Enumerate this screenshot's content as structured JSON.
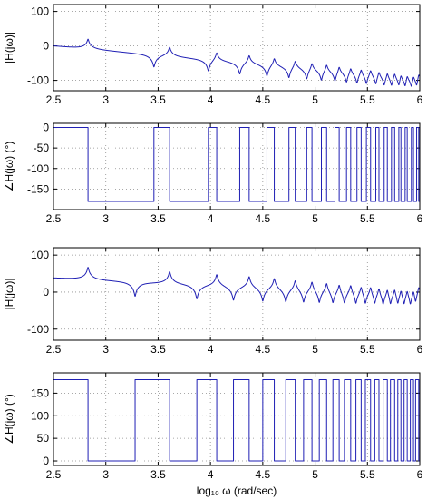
{
  "colors": {
    "trace": "#1f1fb4",
    "axis": "#000000",
    "grid": "#8c8c8c"
  },
  "chart_data": [
    {
      "type": "line",
      "xlabel": "",
      "ylabel": "|H(jω)|",
      "xlim": [
        2.5,
        6
      ],
      "ylim": [
        -130,
        120
      ],
      "xticks": [
        "2.5",
        "3",
        "3.5",
        "4",
        "4.5",
        "5",
        "5.5",
        "6"
      ],
      "yticks": [
        "100",
        "0",
        "-100"
      ],
      "grid": true,
      "series": [
        {
          "kind": "magnitude",
          "baseline_start": 0,
          "baseline_end": -95,
          "resonance_peak_height": 22,
          "antiresonance_depth": 28,
          "resonances": [
            2.83,
            3.61,
            4.06,
            4.37,
            4.61,
            4.81,
            4.97,
            5.11,
            5.23,
            5.34,
            5.44,
            5.53,
            5.61,
            5.69,
            5.76,
            5.82,
            5.88,
            5.94,
            5.99
          ],
          "antiresonances": [
            3.46,
            3.98,
            4.28,
            4.54,
            4.75,
            4.92,
            5.06,
            5.19,
            5.3,
            5.4,
            5.49,
            5.58,
            5.66,
            5.73,
            5.8,
            5.86,
            5.92,
            5.97
          ]
        }
      ]
    },
    {
      "type": "line",
      "xlabel": "",
      "ylabel": "∠H(jω) (°)",
      "xlim": [
        2.5,
        6
      ],
      "ylim": [
        -200,
        10
      ],
      "xticks": [
        "2.5",
        "3",
        "3.5",
        "4",
        "4.5",
        "5",
        "5.5",
        "6"
      ],
      "yticks": [
        "0",
        "-50",
        "-100",
        "-150"
      ],
      "grid": true,
      "series": [
        {
          "kind": "phase",
          "levels": [
            0,
            -180
          ],
          "transitions": [
            2.83,
            3.46,
            3.61,
            3.98,
            4.06,
            4.28,
            4.37,
            4.54,
            4.61,
            4.75,
            4.81,
            4.92,
            4.97,
            5.06,
            5.11,
            5.19,
            5.23,
            5.3,
            5.34,
            5.4,
            5.44,
            5.49,
            5.53,
            5.58,
            5.61,
            5.66,
            5.69,
            5.73,
            5.76,
            5.8,
            5.82,
            5.86,
            5.88,
            5.92,
            5.94,
            5.97,
            5.99
          ]
        }
      ]
    },
    {
      "type": "line",
      "xlabel": "",
      "ylabel": "|H(jω)|",
      "xlim": [
        2.5,
        6
      ],
      "ylim": [
        -130,
        120
      ],
      "xticks": [
        "2.5",
        "3",
        "3.5",
        "4",
        "4.5",
        "5",
        "5.5",
        "6"
      ],
      "yticks": [
        "100",
        "0",
        "-100"
      ],
      "grid": true,
      "series": [
        {
          "kind": "magnitude",
          "baseline_start": 38,
          "baseline_end": -10,
          "resonance_peak_height": 26,
          "antiresonance_depth": 30,
          "resonances": [
            2.83,
            3.61,
            4.06,
            4.37,
            4.61,
            4.81,
            4.97,
            5.11,
            5.23,
            5.34,
            5.44,
            5.53,
            5.61,
            5.69,
            5.76,
            5.82,
            5.88,
            5.94,
            5.99
          ],
          "antiresonances": [
            3.28,
            3.87,
            4.22,
            4.5,
            4.72,
            4.89,
            5.04,
            5.17,
            5.28,
            5.39,
            5.48,
            5.57,
            5.65,
            5.72,
            5.79,
            5.85,
            5.91,
            5.96
          ]
        }
      ]
    },
    {
      "type": "line",
      "xlabel": "log₁₀ ω (rad/sec)",
      "ylabel": "∠H(jω) (°)",
      "xlim": [
        2.5,
        6
      ],
      "ylim": [
        -10,
        195
      ],
      "xticks": [
        "2.5",
        "3",
        "3.5",
        "4",
        "4.5",
        "5",
        "5.5",
        "6"
      ],
      "yticks": [
        "150",
        "100",
        "50",
        "0"
      ],
      "grid": true,
      "series": [
        {
          "kind": "phase",
          "levels": [
            180,
            0
          ],
          "transitions": [
            2.83,
            3.28,
            3.61,
            3.87,
            4.06,
            4.22,
            4.37,
            4.5,
            4.61,
            4.72,
            4.81,
            4.89,
            4.97,
            5.04,
            5.11,
            5.17,
            5.23,
            5.28,
            5.34,
            5.39,
            5.44,
            5.48,
            5.53,
            5.57,
            5.61,
            5.65,
            5.69,
            5.72,
            5.76,
            5.79,
            5.82,
            5.85,
            5.88,
            5.91,
            5.94,
            5.96,
            5.99
          ]
        }
      ]
    }
  ]
}
